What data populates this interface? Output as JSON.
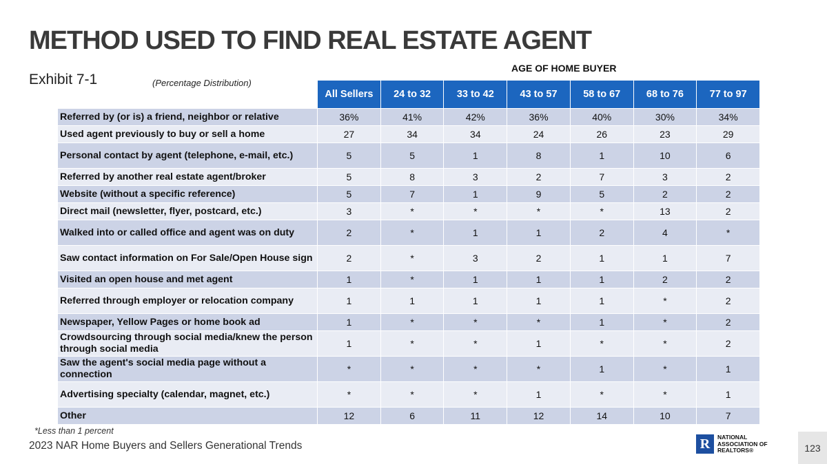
{
  "header": {
    "title": "METHOD USED TO FIND REAL ESTATE AGENT",
    "exhibit": "Exhibit 7-1",
    "distribution_note": "(Percentage Distribution)",
    "group_header": "AGE OF HOME BUYER"
  },
  "table": {
    "columns": [
      "All Sellers",
      "24 to 32",
      "33 to 42",
      "43 to 57",
      "58 to 67",
      "68 to 76",
      "77 to 97"
    ],
    "rows": [
      {
        "label": "Referred by (or is) a friend, neighbor or relative",
        "values": [
          "36%",
          "41%",
          "42%",
          "36%",
          "40%",
          "30%",
          "34%"
        ]
      },
      {
        "label": "Used agent previously to buy or sell a home",
        "values": [
          "27",
          "34",
          "34",
          "24",
          "26",
          "23",
          "29"
        ]
      },
      {
        "label": "Personal contact by agent (telephone, e-mail, etc.)",
        "values": [
          "5",
          "5",
          "1",
          "8",
          "1",
          "10",
          "6"
        ]
      },
      {
        "label": "Referred by another real estate agent/broker",
        "values": [
          "5",
          "8",
          "3",
          "2",
          "7",
          "3",
          "2"
        ]
      },
      {
        "label": "Website (without a specific reference)",
        "values": [
          "5",
          "7",
          "1",
          "9",
          "5",
          "2",
          "2"
        ]
      },
      {
        "label": "Direct mail (newsletter, flyer, postcard, etc.)",
        "values": [
          "3",
          "*",
          "*",
          "*",
          "*",
          "13",
          "2"
        ]
      },
      {
        "label": "Walked into or called office and agent was on duty",
        "values": [
          "2",
          "*",
          "1",
          "1",
          "2",
          "4",
          "*"
        ]
      },
      {
        "label": "Saw contact information on For Sale/Open House sign",
        "values": [
          "2",
          "*",
          "3",
          "2",
          "1",
          "1",
          "7"
        ]
      },
      {
        "label": "Visited an open house and met agent",
        "values": [
          "1",
          "*",
          "1",
          "1",
          "1",
          "2",
          "2"
        ]
      },
      {
        "label": "Referred through employer or relocation company",
        "values": [
          "1",
          "1",
          "1",
          "1",
          "1",
          "*",
          "2"
        ]
      },
      {
        "label": "Newspaper, Yellow Pages or home book ad",
        "values": [
          "1",
          "*",
          "*",
          "*",
          "1",
          "*",
          "2"
        ]
      },
      {
        "label": "Crowdsourcing through social media/knew the person through social media",
        "values": [
          "1",
          "*",
          "*",
          "1",
          "*",
          "*",
          "2"
        ]
      },
      {
        "label": "Saw the agent's social media page without a connection",
        "values": [
          "*",
          "*",
          "*",
          "*",
          "1",
          "*",
          "1"
        ]
      },
      {
        "label": "Advertising specialty (calendar, magnet, etc.)",
        "values": [
          "*",
          "*",
          "*",
          "1",
          "*",
          "*",
          "1"
        ]
      },
      {
        "label": "Other",
        "values": [
          "12",
          "6",
          "11",
          "12",
          "14",
          "10",
          "7"
        ]
      }
    ]
  },
  "footer": {
    "footnote": "*Less than 1 percent",
    "report_title": "2023 NAR Home Buyers and Sellers Generational Trends",
    "logo_mark": "R",
    "logo_line1": "National",
    "logo_line2": "Association of",
    "logo_line3": "Realtors®",
    "page_number": "123"
  },
  "colors": {
    "header_blue": "#1c66bf",
    "row_dark": "#ccd3e6",
    "row_light": "#e9ecf4"
  }
}
